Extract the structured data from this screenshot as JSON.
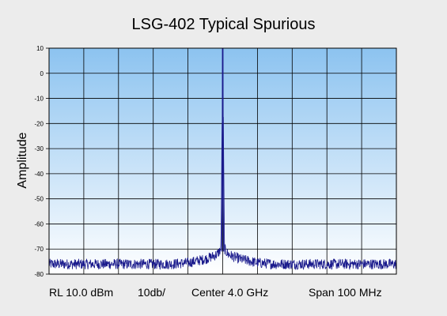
{
  "chart_data": {
    "type": "line",
    "title": "LSG-402 Typical Spurious",
    "ylabel": "Amplitude",
    "xlabel": "",
    "ylim": [
      -80,
      10
    ],
    "yticks": [
      10,
      0,
      -10,
      -20,
      -30,
      -40,
      -50,
      -60,
      -70,
      -80
    ],
    "x_divisions": 10,
    "grid": true,
    "legend": "none",
    "series": [
      {
        "x_mhz": [
          -50,
          -45,
          -40,
          -35,
          -30,
          -25,
          -20,
          -15,
          -10,
          -5,
          -3,
          -1.5,
          -0.5,
          0,
          0.5,
          1.5,
          3,
          5,
          10,
          15,
          20,
          25,
          30,
          35,
          40,
          45,
          50
        ],
        "y_dbm": [
          -76,
          -76,
          -76,
          -76,
          -76,
          -76,
          -76,
          -76,
          -75.5,
          -74,
          -73,
          -72,
          -70,
          10,
          -70,
          -72,
          -73,
          -74,
          -75.5,
          -76,
          -76,
          -76,
          -76,
          -76,
          -76,
          -76,
          -76
        ]
      }
    ],
    "noise_floor_dbm": -76,
    "peak_dbm": 10,
    "plot_gradient": [
      "#8cc3f0",
      "#ffffff"
    ],
    "trace_color": "#1a1a8c",
    "annotations": {
      "reference_level": "RL 10.0 dBm",
      "scale": "10db/",
      "center": "Center 4.0 GHz",
      "span": "Span 100 MHz"
    }
  }
}
